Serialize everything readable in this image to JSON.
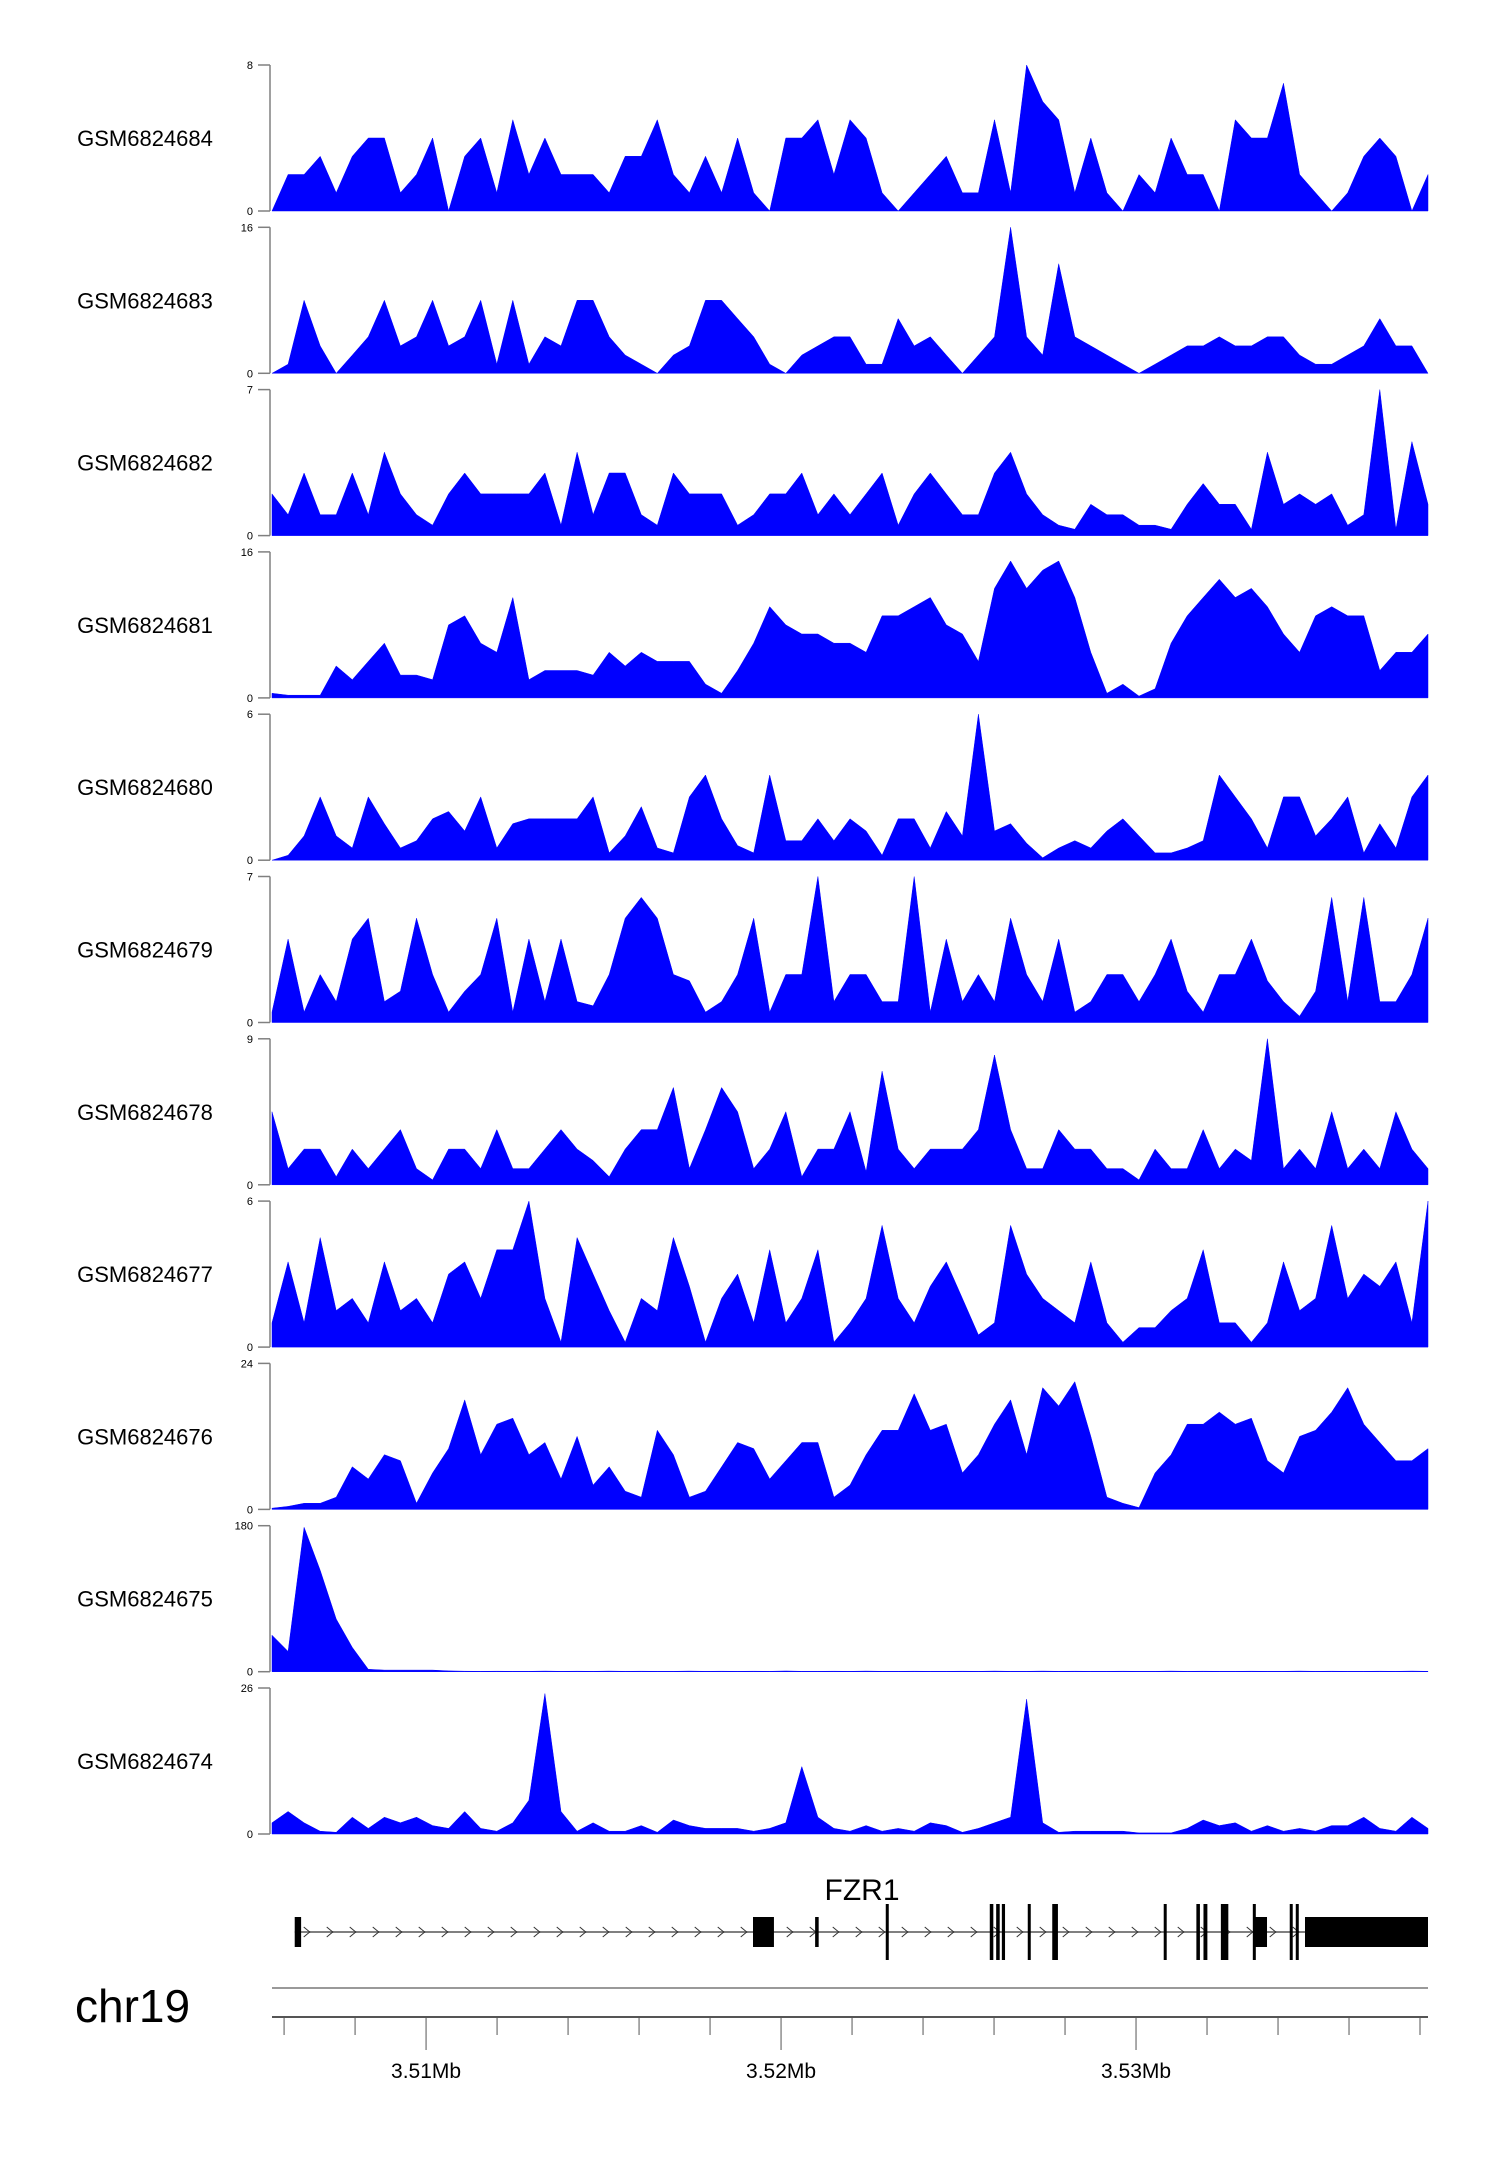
{
  "chart_data": {
    "type": "area",
    "title": "",
    "chromosome": "chr19",
    "xlim": [
      3505660,
      3538225
    ],
    "fill_color": "#0000ff",
    "axis_color": "#808080",
    "x_ticks": [
      3506000,
      3508000,
      3510000,
      3512000,
      3514000,
      3516000,
      3518000,
      3520000,
      3522000,
      3524000,
      3526000,
      3528000,
      3530000,
      3532000,
      3534000,
      3536000,
      3538000
    ],
    "x_tick_labels": [
      {
        "pos": 3510000,
        "label": "3.51Mb"
      },
      {
        "pos": 3520000,
        "label": "3.52Mb"
      },
      {
        "pos": 3530000,
        "label": "3.53Mb"
      }
    ],
    "tracks": [
      {
        "name": "GSM6824684",
        "ylim": [
          0,
          8
        ],
        "values": [
          0,
          2,
          2,
          3,
          1,
          3,
          4,
          4,
          1,
          2,
          4,
          0,
          3,
          4,
          1,
          5,
          2,
          4,
          2,
          2,
          2,
          1,
          3,
          3,
          5,
          2,
          1,
          3,
          1,
          4,
          1,
          0,
          4,
          4,
          5,
          2,
          5,
          4,
          1,
          0,
          1,
          2,
          3,
          1,
          1,
          5,
          1,
          8,
          6,
          5,
          1,
          4,
          1,
          0,
          2,
          1,
          4,
          2,
          2,
          0,
          5,
          4,
          4,
          7,
          2,
          1,
          0,
          1,
          3,
          4,
          3,
          0,
          2
        ]
      },
      {
        "name": "GSM6824683",
        "ylim": [
          0,
          16
        ],
        "values": [
          0,
          1,
          8,
          3,
          0,
          2,
          4,
          8,
          3,
          4,
          8,
          3,
          4,
          8,
          1,
          8,
          1,
          4,
          3,
          8,
          8,
          4,
          2,
          1,
          0,
          2,
          3,
          8,
          8,
          6,
          4,
          1,
          0,
          2,
          3,
          4,
          4,
          1,
          1,
          6,
          3,
          4,
          2,
          0,
          2,
          4,
          16,
          4,
          2,
          12,
          4,
          3,
          2,
          1,
          0,
          1,
          2,
          3,
          3,
          4,
          3,
          3,
          4,
          4,
          2,
          1,
          1,
          2,
          3,
          6,
          3,
          3,
          0
        ]
      },
      {
        "name": "GSM6824682",
        "ylim": [
          0,
          7
        ],
        "values": [
          2,
          1,
          3,
          1,
          1,
          3,
          1,
          4,
          2,
          1,
          0.5,
          2,
          3,
          2,
          2,
          2,
          2,
          3,
          0.5,
          4,
          1,
          3,
          3,
          1,
          0.5,
          3,
          2,
          2,
          2,
          0.5,
          1,
          2,
          2,
          3,
          1,
          2,
          1,
          2,
          3,
          0.5,
          2,
          3,
          2,
          1,
          1,
          3,
          4,
          2,
          1,
          0.5,
          0.3,
          1.5,
          1,
          1,
          0.5,
          0.5,
          0.3,
          1.5,
          2.5,
          1.5,
          1.5,
          0.3,
          4,
          1.5,
          2,
          1.5,
          2,
          0.5,
          1,
          7,
          0.3,
          4.5,
          1.5
        ]
      },
      {
        "name": "GSM6824681",
        "ylim": [
          0,
          16
        ],
        "values": [
          0.5,
          0.3,
          0.3,
          0.3,
          3.5,
          2,
          4,
          6,
          2.5,
          2.5,
          2,
          8,
          9,
          6,
          5,
          11,
          2,
          3,
          3,
          3,
          2.5,
          5,
          3.5,
          5,
          4,
          4,
          4,
          1.5,
          0.5,
          3,
          6,
          10,
          8,
          7,
          7,
          6,
          6,
          5,
          9,
          9,
          10,
          11,
          8,
          7,
          4,
          12,
          15,
          12,
          14,
          15,
          11,
          5,
          0.5,
          1.5,
          0.2,
          1,
          6,
          9,
          11,
          13,
          11,
          12,
          10,
          7,
          5,
          9,
          10,
          9,
          9,
          3,
          5,
          5,
          7
        ]
      },
      {
        "name": "GSM6824680",
        "ylim": [
          0,
          6
        ],
        "values": [
          0,
          0.2,
          1,
          2.6,
          1,
          0.5,
          2.6,
          1.5,
          0.5,
          0.8,
          1.7,
          2,
          1.2,
          2.6,
          0.5,
          1.5,
          1.7,
          1.7,
          1.7,
          1.7,
          2.6,
          0.3,
          1,
          2.2,
          0.5,
          0.3,
          2.6,
          3.5,
          1.7,
          0.6,
          0.3,
          3.5,
          0.8,
          0.8,
          1.7,
          0.8,
          1.7,
          1.2,
          0.2,
          1.7,
          1.7,
          0.5,
          2,
          1,
          6,
          1.2,
          1.5,
          0.7,
          0.1,
          0.5,
          0.8,
          0.5,
          1.2,
          1.7,
          1,
          0.3,
          0.3,
          0.5,
          0.8,
          3.5,
          2.6,
          1.7,
          0.5,
          2.6,
          2.6,
          1,
          1.7,
          2.6,
          0.3,
          1.5,
          0.5,
          2.6,
          3.5
        ]
      },
      {
        "name": "GSM6824679",
        "ylim": [
          0,
          7
        ],
        "values": [
          0.5,
          4,
          0.5,
          2.3,
          1,
          4,
          5,
          1,
          1.5,
          5,
          2.3,
          0.5,
          1.5,
          2.3,
          5,
          0.5,
          4,
          1,
          4,
          1,
          0.8,
          2.3,
          5,
          6,
          5,
          2.3,
          2,
          0.5,
          1,
          2.3,
          5,
          0.5,
          2.3,
          2.3,
          7,
          1,
          2.3,
          2.3,
          1,
          1,
          7,
          0.5,
          4,
          1,
          2.3,
          1,
          5,
          2.3,
          1,
          4,
          0.5,
          1,
          2.3,
          2.3,
          1,
          2.3,
          4,
          1.5,
          0.5,
          2.3,
          2.3,
          4,
          2,
          1,
          0.3,
          1.5,
          6,
          1,
          6,
          1,
          1,
          2.3,
          5
        ]
      },
      {
        "name": "GSM6824678",
        "ylim": [
          0,
          9
        ],
        "values": [
          4.5,
          1,
          2.2,
          2.2,
          0.5,
          2.2,
          1,
          2.2,
          3.4,
          1,
          0.3,
          2.2,
          2.2,
          1,
          3.4,
          1,
          1,
          2.2,
          3.4,
          2.2,
          1.5,
          0.5,
          2.2,
          3.4,
          3.4,
          6,
          1,
          3.4,
          6,
          4.5,
          1,
          2.2,
          4.5,
          0.5,
          2.2,
          2.2,
          4.5,
          0.8,
          7,
          2.2,
          1,
          2.2,
          2.2,
          2.2,
          3.4,
          8,
          3.4,
          1,
          1,
          3.4,
          2.2,
          2.2,
          1,
          1,
          0.3,
          2.2,
          1,
          1,
          3.4,
          1,
          2.2,
          1.5,
          9,
          1,
          2.2,
          1,
          4.5,
          1,
          2.2,
          1,
          4.5,
          2.2,
          1
        ]
      },
      {
        "name": "GSM6824677",
        "ylim": [
          0,
          6
        ],
        "values": [
          1,
          3.5,
          1,
          4.5,
          1.5,
          2,
          1,
          3.5,
          1.5,
          2,
          1,
          3,
          3.5,
          2,
          4,
          4,
          6,
          2,
          0.2,
          4.5,
          3,
          1.5,
          0.2,
          2,
          1.5,
          4.5,
          2.5,
          0.2,
          2,
          3,
          1,
          4,
          1,
          2,
          4,
          0.2,
          1,
          2,
          5,
          2,
          1,
          2.5,
          3.5,
          2,
          0.5,
          1,
          5,
          3,
          2,
          1.5,
          1,
          3.5,
          1,
          0.2,
          0.8,
          0.8,
          1.5,
          2,
          4,
          1,
          1,
          0.2,
          1,
          3.5,
          1.5,
          2,
          5,
          2,
          3,
          2.5,
          3.5,
          1,
          6
        ]
      },
      {
        "name": "GSM6824676",
        "ylim": [
          0,
          24
        ],
        "values": [
          0.2,
          0.5,
          1,
          1,
          2,
          7,
          5,
          9,
          8,
          1,
          6,
          10,
          18,
          9,
          14,
          15,
          9,
          11,
          5,
          12,
          4,
          7,
          3,
          2,
          13,
          9,
          2,
          3,
          7,
          11,
          10,
          5,
          8,
          11,
          11,
          2,
          4,
          9,
          13,
          13,
          19,
          13,
          14,
          6,
          9,
          14,
          18,
          9,
          20,
          17,
          21,
          12,
          2,
          1,
          0.3,
          6,
          9,
          14,
          14,
          16,
          14,
          15,
          8,
          6,
          12,
          13,
          16,
          20,
          14,
          11,
          8,
          8,
          10
        ]
      },
      {
        "name": "GSM6824675",
        "ylim": [
          0,
          180
        ],
        "values": [
          45,
          25,
          178,
          125,
          65,
          30,
          3,
          2,
          2,
          2,
          2,
          1,
          0.6,
          0.5,
          0.6,
          0.5,
          0.5,
          0.7,
          0.5,
          0.6,
          0.5,
          0.8,
          0.5,
          0.6,
          0.5,
          0.5,
          0.7,
          0.5,
          0.6,
          0.5,
          0.6,
          0.5,
          0.9,
          0.5,
          0.5,
          0.6,
          0.5,
          0.7,
          0.5,
          0.5,
          0.6,
          0.5,
          0.5,
          0.6,
          0.5,
          0.7,
          0.5,
          0.5,
          0.8,
          0.5,
          0.6,
          0.5,
          0.5,
          0.6,
          0.5,
          0.5,
          0.7,
          0.5,
          0.6,
          0.5,
          0.5,
          0.6,
          0.5,
          0.5,
          0.7,
          0.5,
          0.6,
          0.5,
          0.5,
          0.6,
          0.5,
          0.7,
          0.5
        ]
      },
      {
        "name": "GSM6824674",
        "ylim": [
          0,
          26
        ],
        "values": [
          2,
          4,
          2,
          0.5,
          0.3,
          3,
          1,
          3,
          2,
          3,
          1.5,
          1,
          4,
          1,
          0.5,
          2,
          6,
          25,
          4,
          0.5,
          2,
          0.5,
          0.5,
          1.5,
          0.3,
          2.5,
          1.5,
          1,
          1,
          1,
          0.5,
          1,
          2,
          12,
          3,
          1,
          0.5,
          1.5,
          0.5,
          1,
          0.5,
          2,
          1.5,
          0.3,
          1,
          2,
          3,
          24,
          2,
          0.3,
          0.5,
          0.5,
          0.5,
          0.5,
          0.2,
          0.2,
          0.2,
          1,
          2.5,
          1.5,
          2,
          0.5,
          1.5,
          0.5,
          1,
          0.5,
          1.5,
          1.5,
          3,
          1,
          0.5,
          3,
          1
        ]
      }
    ],
    "gene": {
      "name": "FZR1",
      "strand": "+",
      "start": 3506300,
      "end": 3538225,
      "exons": [
        {
          "start": 3506300,
          "end": 3506480,
          "coding": false
        },
        {
          "start": 3519210,
          "end": 3519800,
          "coding": false
        },
        {
          "start": 3520960,
          "end": 3521060,
          "coding": false
        },
        {
          "start": 3522950,
          "end": 3523020,
          "coding": true
        },
        {
          "start": 3525880,
          "end": 3525980,
          "coding": true
        },
        {
          "start": 3526060,
          "end": 3526160,
          "coding": true
        },
        {
          "start": 3526220,
          "end": 3526310,
          "coding": true
        },
        {
          "start": 3526950,
          "end": 3527030,
          "coding": true
        },
        {
          "start": 3527640,
          "end": 3527800,
          "coding": true
        },
        {
          "start": 3530780,
          "end": 3530850,
          "coding": true
        },
        {
          "start": 3531700,
          "end": 3531800,
          "coding": true
        },
        {
          "start": 3531900,
          "end": 3532010,
          "coding": true
        },
        {
          "start": 3532390,
          "end": 3532600,
          "coding": true
        },
        {
          "start": 3533290,
          "end": 3533360,
          "coding": true
        },
        {
          "start": 3533360,
          "end": 3533690,
          "coding": false
        },
        {
          "start": 3534330,
          "end": 3534400,
          "coding": true
        },
        {
          "start": 3534500,
          "end": 3534570,
          "coding": true
        },
        {
          "start": 3534760,
          "end": 3538225,
          "coding": false
        }
      ]
    }
  }
}
